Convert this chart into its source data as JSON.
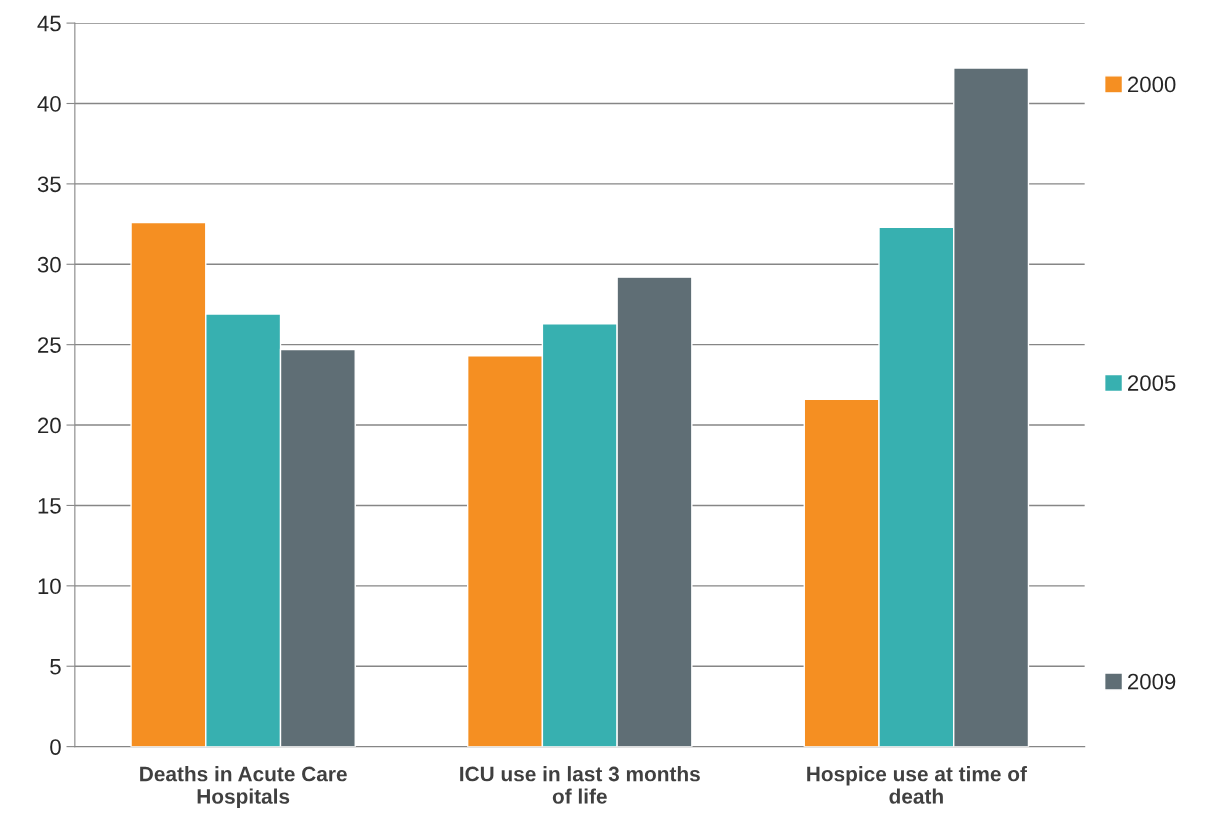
{
  "chart_data": {
    "type": "bar",
    "categories": [
      "Deaths in Acute Care Hospitals",
      "ICU use in last 3 months of life",
      "Hospice use at time of death"
    ],
    "series": [
      {
        "name": "2000",
        "color": "#f58f22",
        "values": [
          32.6,
          24.3,
          21.6
        ]
      },
      {
        "name": "2005",
        "color": "#37b0b0",
        "values": [
          26.9,
          26.3,
          32.3
        ]
      },
      {
        "name": "2009",
        "color": "#5f6e75",
        "values": [
          24.7,
          29.2,
          42.2
        ]
      }
    ],
    "ylim": [
      0,
      45
    ],
    "yticks": [
      0,
      5,
      10,
      15,
      20,
      25,
      30,
      35,
      40,
      45
    ],
    "grid": "y",
    "legend": "right"
  }
}
